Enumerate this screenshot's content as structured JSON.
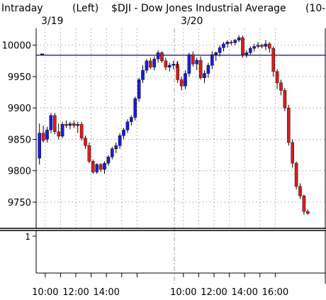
{
  "header": {
    "mode": "Intraday",
    "axis_side": "(Left)",
    "symbol_title": "$DJI - Dow Jones Industrial Average",
    "trailing": "(10-"
  },
  "date_labels": [
    "3/19",
    "3/20"
  ],
  "colors": {
    "up": "#1c1cd8",
    "down": "#dd1a1a",
    "reference_line": "#0a0a80",
    "grid": "#b8b8b8",
    "axis": "#000000",
    "background": "#ffffff"
  },
  "volume_panel": {
    "tick_label": "1"
  },
  "chart_data": {
    "type": "candlestick",
    "title": "$DJI - Dow Jones Industrial Average",
    "interval": "15-minute",
    "ylim": [
      9720,
      10020
    ],
    "y_ticks": [
      9750,
      9800,
      9850,
      9900,
      9950,
      10000
    ],
    "y_tick_labels": [
      "9750",
      "9800",
      "9850",
      "9900",
      "9950",
      "10000"
    ],
    "x_tick_labels": [
      "10:00",
      "12:00",
      "14:00",
      "10:00",
      "12:00",
      "14:00",
      "16:00"
    ],
    "reference_line": 9984,
    "grid": true,
    "sessions": [
      {
        "date": "3/19",
        "start": "09:30",
        "candles": [
          {
            "o": 9820,
            "h": 9875,
            "l": 9810,
            "c": 9860
          },
          {
            "o": 9860,
            "h": 9872,
            "l": 9845,
            "c": 9848
          },
          {
            "o": 9850,
            "h": 9870,
            "l": 9845,
            "c": 9865
          },
          {
            "o": 9865,
            "h": 9892,
            "l": 9860,
            "c": 9888
          },
          {
            "o": 9888,
            "h": 9892,
            "l": 9858,
            "c": 9862
          },
          {
            "o": 9862,
            "h": 9875,
            "l": 9850,
            "c": 9855
          },
          {
            "o": 9855,
            "h": 9878,
            "l": 9852,
            "c": 9874
          },
          {
            "o": 9874,
            "h": 9880,
            "l": 9868,
            "c": 9872
          },
          {
            "o": 9872,
            "h": 9878,
            "l": 9866,
            "c": 9875
          },
          {
            "o": 9875,
            "h": 9880,
            "l": 9868,
            "c": 9872
          },
          {
            "o": 9872,
            "h": 9878,
            "l": 9860,
            "c": 9874
          },
          {
            "o": 9874,
            "h": 9878,
            "l": 9848,
            "c": 9852
          },
          {
            "o": 9852,
            "h": 9856,
            "l": 9835,
            "c": 9840
          },
          {
            "o": 9840,
            "h": 9845,
            "l": 9812,
            "c": 9815
          },
          {
            "o": 9815,
            "h": 9818,
            "l": 9795,
            "c": 9798
          },
          {
            "o": 9798,
            "h": 9812,
            "l": 9795,
            "c": 9810
          },
          {
            "o": 9810,
            "h": 9812,
            "l": 9798,
            "c": 9802
          },
          {
            "o": 9802,
            "h": 9815,
            "l": 9795,
            "c": 9812
          },
          {
            "o": 9812,
            "h": 9825,
            "l": 9808,
            "c": 9822
          },
          {
            "o": 9822,
            "h": 9838,
            "l": 9818,
            "c": 9835
          },
          {
            "o": 9835,
            "h": 9845,
            "l": 9828,
            "c": 9840
          },
          {
            "o": 9840,
            "h": 9860,
            "l": 9835,
            "c": 9856
          },
          {
            "o": 9856,
            "h": 9868,
            "l": 9850,
            "c": 9865
          },
          {
            "o": 9865,
            "h": 9882,
            "l": 9860,
            "c": 9878
          },
          {
            "o": 9878,
            "h": 9888,
            "l": 9872,
            "c": 9885
          },
          {
            "o": 9885,
            "h": 9918,
            "l": 9880,
            "c": 9915
          },
          {
            "o": 9915,
            "h": 9948,
            "l": 9910,
            "c": 9945
          },
          {
            "o": 9945,
            "h": 9968,
            "l": 9940,
            "c": 9960
          },
          {
            "o": 9960,
            "h": 9978,
            "l": 9955,
            "c": 9975
          },
          {
            "o": 9975,
            "h": 9980,
            "l": 9962,
            "c": 9965
          },
          {
            "o": 9965,
            "h": 9982,
            "l": 9960,
            "c": 9978
          },
          {
            "o": 9978,
            "h": 9992,
            "l": 9972,
            "c": 9988
          },
          {
            "o": 9988,
            "h": 9990,
            "l": 9972,
            "c": 9975
          },
          {
            "o": 9975,
            "h": 9980,
            "l": 9960,
            "c": 9965
          },
          {
            "o": 9965,
            "h": 9972,
            "l": 9958,
            "c": 9968
          },
          {
            "o": 9968,
            "h": 9975,
            "l": 9962,
            "c": 9970
          },
          {
            "o": 9970,
            "h": 9974,
            "l": 9962,
            "c": 9964
          }
        ]
      },
      {
        "date": "3/20",
        "start": "09:30",
        "candles": [
          {
            "o": 9965,
            "h": 9975,
            "l": 9940,
            "c": 9945
          },
          {
            "o": 9945,
            "h": 9950,
            "l": 9928,
            "c": 9935
          },
          {
            "o": 9935,
            "h": 9960,
            "l": 9930,
            "c": 9955
          },
          {
            "o": 9955,
            "h": 9988,
            "l": 9950,
            "c": 9985
          },
          {
            "o": 9985,
            "h": 9990,
            "l": 9966,
            "c": 9970
          },
          {
            "o": 9970,
            "h": 9980,
            "l": 9960,
            "c": 9976
          },
          {
            "o": 9976,
            "h": 9982,
            "l": 9945,
            "c": 9948
          },
          {
            "o": 9948,
            "h": 9960,
            "l": 9940,
            "c": 9955
          },
          {
            "o": 9955,
            "h": 9972,
            "l": 9948,
            "c": 9968
          },
          {
            "o": 9968,
            "h": 9990,
            "l": 9962,
            "c": 9985
          },
          {
            "o": 9985,
            "h": 9990,
            "l": 9975,
            "c": 9988
          },
          {
            "o": 9988,
            "h": 10000,
            "l": 9982,
            "c": 9996
          },
          {
            "o": 9996,
            "h": 10005,
            "l": 9990,
            "c": 10002
          },
          {
            "o": 10002,
            "h": 10008,
            "l": 9996,
            "c": 10005
          },
          {
            "o": 10005,
            "h": 10008,
            "l": 10000,
            "c": 10004
          },
          {
            "o": 10004,
            "h": 10010,
            "l": 10000,
            "c": 10008
          },
          {
            "o": 10008,
            "h": 10016,
            "l": 10005,
            "c": 10012
          },
          {
            "o": 10012,
            "h": 10015,
            "l": 9980,
            "c": 9985
          },
          {
            "o": 9985,
            "h": 9992,
            "l": 9980,
            "c": 9988
          },
          {
            "o": 9988,
            "h": 9998,
            "l": 9985,
            "c": 9995
          },
          {
            "o": 9995,
            "h": 10002,
            "l": 9990,
            "c": 9998
          },
          {
            "o": 9998,
            "h": 10005,
            "l": 9995,
            "c": 10000
          },
          {
            "o": 10000,
            "h": 10002,
            "l": 9995,
            "c": 9998
          },
          {
            "o": 9998,
            "h": 10008,
            "l": 9992,
            "c": 10002
          },
          {
            "o": 10002,
            "h": 10005,
            "l": 9988,
            "c": 9995
          },
          {
            "o": 9995,
            "h": 9998,
            "l": 9950,
            "c": 9958
          },
          {
            "o": 9958,
            "h": 9962,
            "l": 9930,
            "c": 9940
          },
          {
            "o": 9940,
            "h": 9945,
            "l": 9920,
            "c": 9928
          },
          {
            "o": 9928,
            "h": 9932,
            "l": 9895,
            "c": 9900
          },
          {
            "o": 9900,
            "h": 9905,
            "l": 9840,
            "c": 9845
          },
          {
            "o": 9845,
            "h": 9850,
            "l": 9805,
            "c": 9812
          },
          {
            "o": 9812,
            "h": 9815,
            "l": 9770,
            "c": 9775
          },
          {
            "o": 9775,
            "h": 9780,
            "l": 9755,
            "c": 9760
          },
          {
            "o": 9760,
            "h": 9762,
            "l": 9730,
            "c": 9735
          },
          {
            "o": 9735,
            "h": 9738,
            "l": 9730,
            "c": 9732
          }
        ]
      }
    ]
  }
}
